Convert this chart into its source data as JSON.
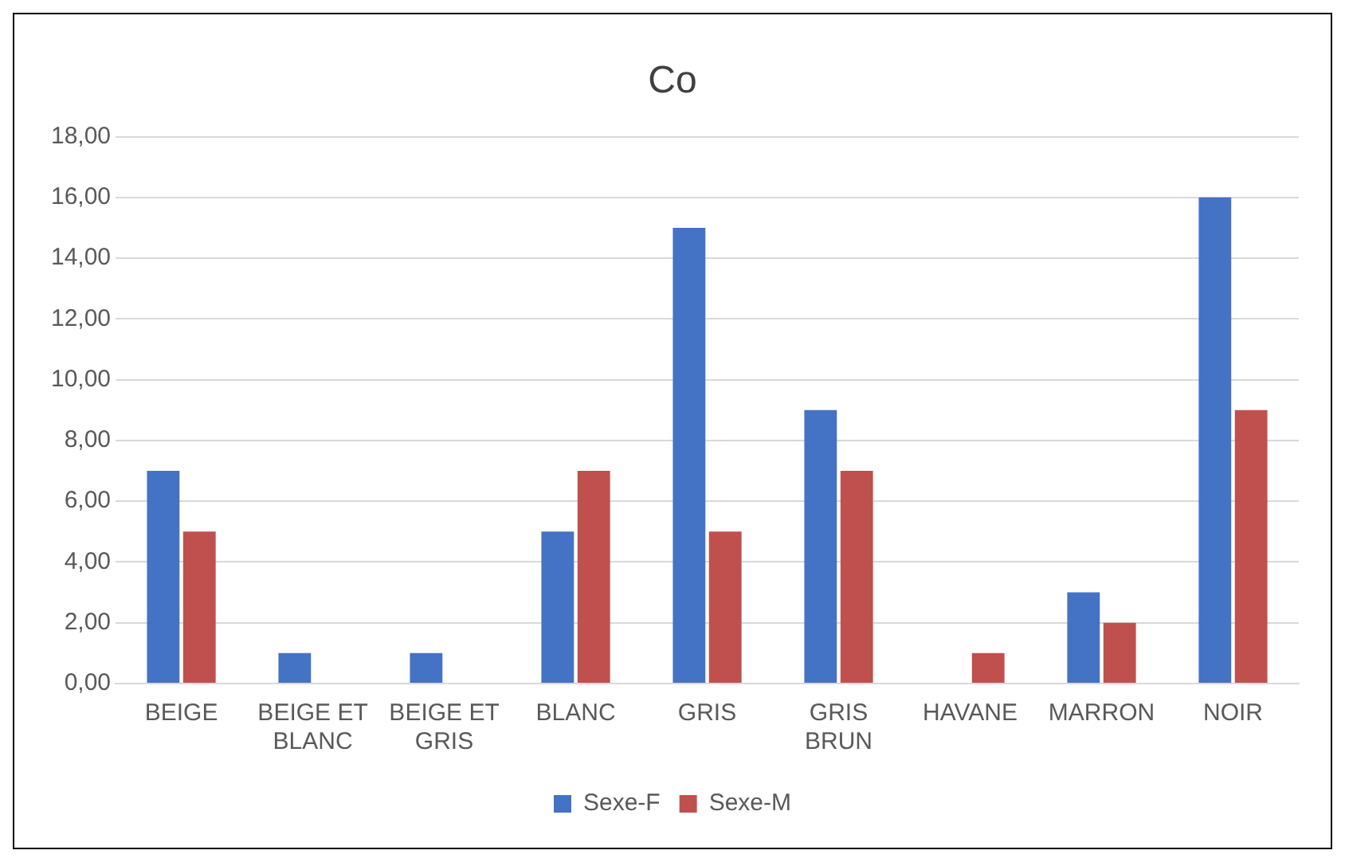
{
  "chart_data": {
    "type": "bar",
    "title": "Co",
    "categories": [
      "BEIGE",
      "BEIGE ET BLANC",
      "BEIGE ET GRIS",
      "BLANC",
      "GRIS",
      "GRIS BRUN",
      "HAVANE",
      "MARRON",
      "NOIR"
    ],
    "series": [
      {
        "name": "Sexe-F",
        "color": "#4472c4",
        "values": [
          7,
          1,
          1,
          5,
          15,
          9,
          0,
          3,
          16
        ]
      },
      {
        "name": "Sexe-M",
        "color": "#c0504d",
        "values": [
          5,
          0,
          0,
          7,
          5,
          7,
          1,
          2,
          9
        ]
      }
    ],
    "ylim": [
      0,
      18
    ],
    "yticks": [
      {
        "value": 0,
        "label": "0,00"
      },
      {
        "value": 2,
        "label": "2,00"
      },
      {
        "value": 4,
        "label": "4,00"
      },
      {
        "value": 6,
        "label": "6,00"
      },
      {
        "value": 8,
        "label": "8,00"
      },
      {
        "value": 10,
        "label": "10,00"
      },
      {
        "value": 12,
        "label": "12,00"
      },
      {
        "value": 14,
        "label": "14,00"
      },
      {
        "value": 16,
        "label": "16,00"
      },
      {
        "value": 18,
        "label": "18,00"
      }
    ],
    "grid": "y",
    "legend": "bottom"
  }
}
